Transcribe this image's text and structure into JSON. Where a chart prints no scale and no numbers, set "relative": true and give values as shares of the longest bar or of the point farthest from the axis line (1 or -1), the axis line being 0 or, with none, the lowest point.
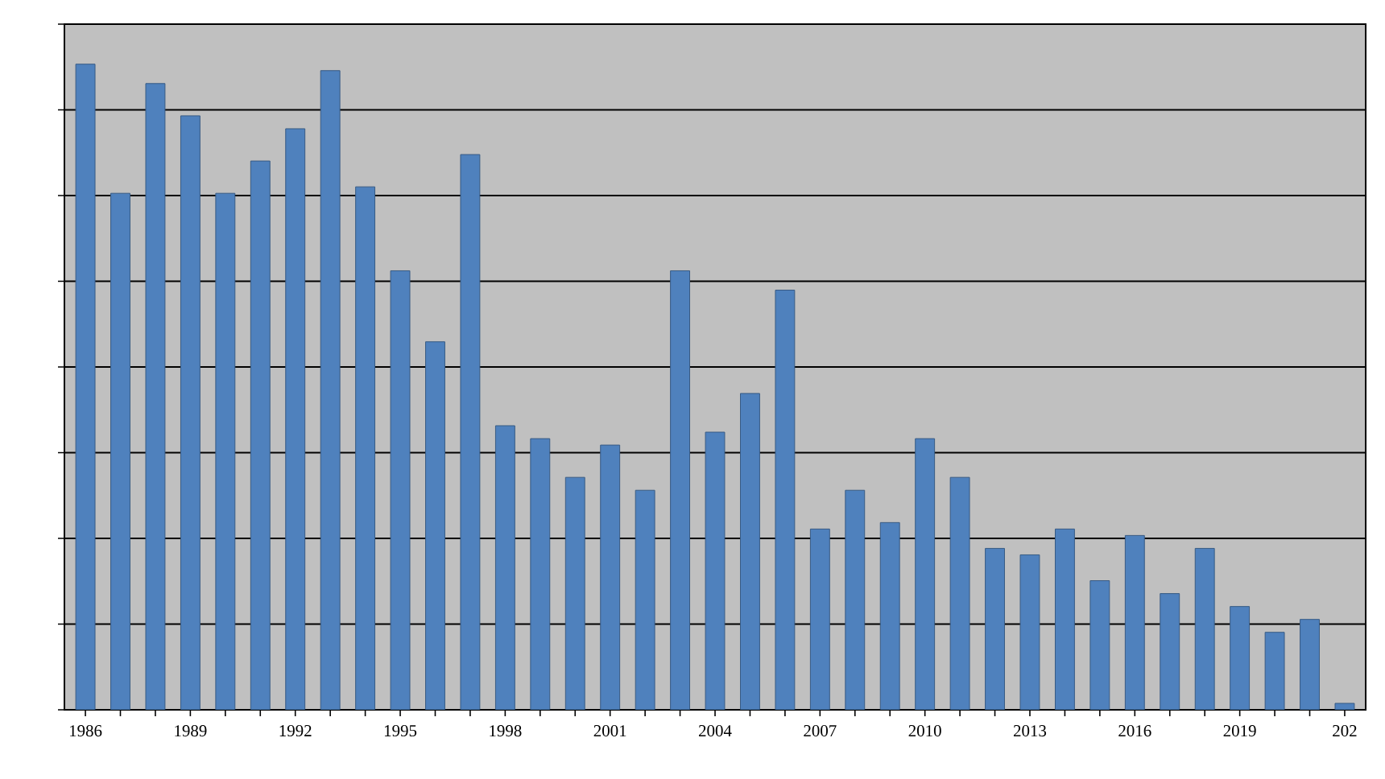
{
  "chart_data": {
    "type": "bar",
    "relative": true,
    "grid": "y",
    "color": "#4f81bd",
    "categories": [
      "1986",
      null,
      null,
      "1989",
      null,
      null,
      "1992",
      null,
      null,
      "1995",
      null,
      null,
      "1998",
      null,
      null,
      "2001",
      null,
      null,
      "2004",
      null,
      null,
      "2007",
      null,
      null,
      "2010",
      null,
      null,
      "2013",
      null,
      null,
      "2016",
      null,
      null,
      "2019",
      null,
      null,
      "202"
    ],
    "values": [
      1,
      0.8,
      0.97,
      0.92,
      0.8,
      0.85,
      0.9,
      0.99,
      0.81,
      0.68,
      0.57,
      0.86,
      0.44,
      0.42,
      0.36,
      0.41,
      0.34,
      0.68,
      0.43,
      0.49,
      0.65,
      0.28,
      0.34,
      0.29,
      0.42,
      0.36,
      0.25,
      0.24,
      0.28,
      0.2,
      0.27,
      0.18,
      0.25,
      0.16,
      0.12,
      0.14,
      0.01
    ]
  }
}
